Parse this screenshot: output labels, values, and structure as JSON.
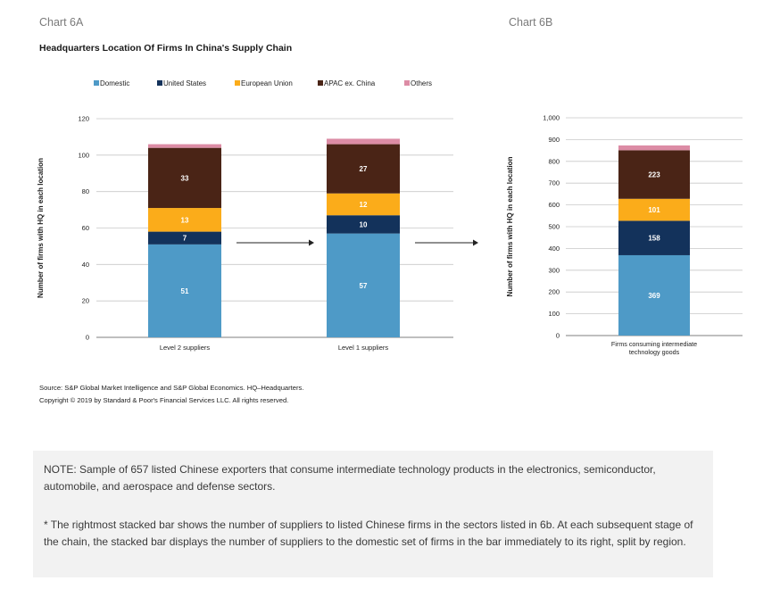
{
  "header": {
    "chart_6a_label": "Chart 6A",
    "chart_6b_label": "Chart 6B",
    "title": "Headquarters Location Of Firms In China's Supply Chain"
  },
  "chart_data": [
    {
      "type": "bar",
      "stacked": true,
      "title": "Headquarters Location Of Firms In China's Supply Chain",
      "categories": [
        "Level 2 suppliers",
        "Level 1 suppliers"
      ],
      "series": [
        {
          "name": "Domestic",
          "color": "#4e9ac7",
          "values": [
            51,
            57
          ]
        },
        {
          "name": "United States",
          "color": "#13325b",
          "values": [
            7,
            10
          ]
        },
        {
          "name": "European Union",
          "color": "#fbac1a",
          "values": [
            13,
            12
          ]
        },
        {
          "name": "APAC ex. China",
          "color": "#4a2416",
          "values": [
            33,
            27
          ]
        },
        {
          "name": "Others",
          "color": "#dc8ca5",
          "values": [
            2,
            3
          ]
        }
      ],
      "data_labels": [
        [
          "51",
          "57"
        ],
        [
          "7",
          "10"
        ],
        [
          "13",
          "12"
        ],
        [
          "33",
          "27"
        ],
        [
          "",
          ""
        ]
      ],
      "ylabel": "Number of firms with HQ in each location",
      "ylim": [
        0,
        120
      ],
      "yticks": [
        "0",
        "20",
        "40",
        "60",
        "80",
        "100",
        "120"
      ],
      "grid": true,
      "legend": "top"
    },
    {
      "type": "bar",
      "stacked": true,
      "categories": [
        "Firms consuming intermediate technology goods"
      ],
      "series": [
        {
          "name": "Domestic",
          "color": "#4e9ac7",
          "values": [
            369
          ]
        },
        {
          "name": "United States",
          "color": "#13325b",
          "values": [
            158
          ]
        },
        {
          "name": "European Union",
          "color": "#fbac1a",
          "values": [
            101
          ]
        },
        {
          "name": "APAC ex. China",
          "color": "#4a2416",
          "values": [
            223
          ]
        },
        {
          "name": "Others",
          "color": "#dc8ca5",
          "values": [
            22
          ]
        }
      ],
      "data_labels": [
        [
          "369"
        ],
        [
          "158"
        ],
        [
          "101"
        ],
        [
          "223"
        ],
        [
          ""
        ]
      ],
      "ylabel": "Number of firms with HQ in each location",
      "ylim": [
        0,
        1000
      ],
      "yticks": [
        "0",
        "100",
        "200",
        "300",
        "400",
        "500",
        "600",
        "700",
        "800",
        "900",
        "1,000"
      ],
      "grid": true
    }
  ],
  "source": {
    "line1": "Source: S&P Global Market Intelligence and S&P Global Economics. HQ–Headquarters.",
    "line2": "Copyright © 2019 by Standard & Poor's Financial Services LLC. All rights reserved."
  },
  "note": {
    "p1": "NOTE: Sample of 657 listed Chinese exporters that consume intermediate technology products in the electronics, semiconductor, automobile, and aerospace and defense sectors.",
    "p2": "* The rightmost stacked bar shows the number of suppliers to listed Chinese firms in the sectors listed in 6b. At each subsequent stage of the chain, the stacked bar displays the number of suppliers to the domestic set of firms in the bar immediately to its right, split by region."
  }
}
